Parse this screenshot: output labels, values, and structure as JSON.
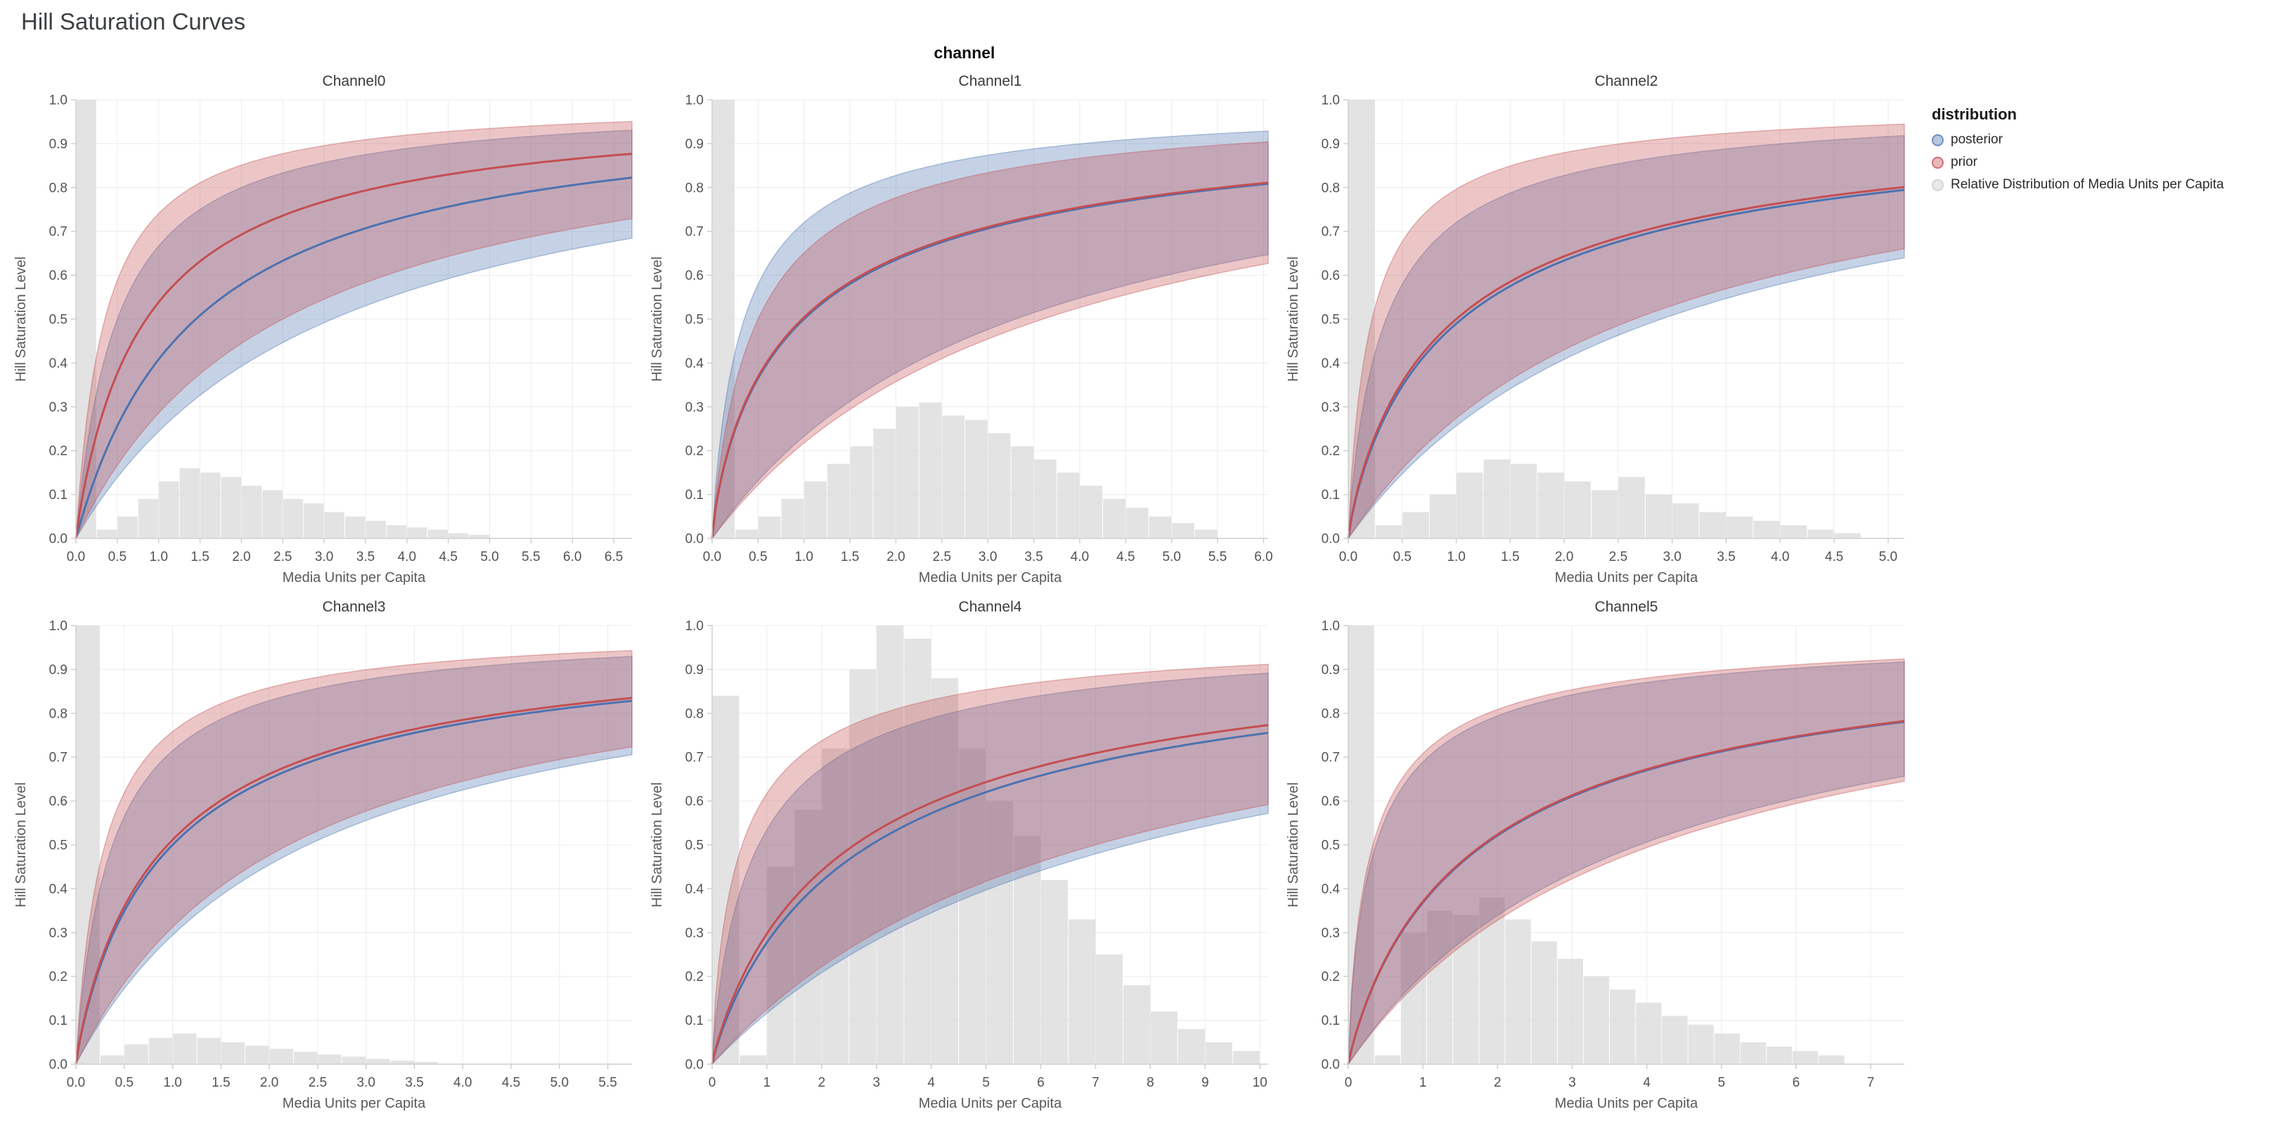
{
  "page_title": "Hill Saturation Curves",
  "facet_header": "channel",
  "axis_labels": {
    "x": "Media Units per Capita",
    "y": "Hill Saturation Level"
  },
  "colors": {
    "posterior": "#4c72b0",
    "prior": "#c44e52",
    "histogram": "#dcdcdc",
    "grid": "#ececec",
    "axis_domain": "#cfcfcf",
    "tick_text": "#535353",
    "axis_title": "#595959"
  },
  "legend": {
    "title": "distribution",
    "items": [
      {
        "label": "posterior",
        "color": "#4c72b0"
      },
      {
        "label": "prior",
        "color": "#c44e52"
      },
      {
        "label": "Relative Distribution of Media Units per Capita",
        "color": "#c9c9c9"
      }
    ]
  },
  "grid_layout": {
    "rows": 2,
    "cols": 3,
    "legend_position": "top-right"
  },
  "chart_data": [
    {
      "type": "line",
      "title": "Channel0",
      "xlabel": "Media Units per Capita",
      "ylabel": "Hill Saturation Level",
      "xlim": [
        0,
        6.72
      ],
      "ylim": [
        0,
        1
      ],
      "x_ticks": [
        0.0,
        0.5,
        1.0,
        1.5,
        2.0,
        2.5,
        3.0,
        3.5,
        4.0,
        4.5,
        5.0,
        5.5,
        6.0,
        6.5
      ],
      "y_ticks": [
        0.0,
        0.1,
        0.2,
        0.3,
        0.4,
        0.5,
        0.6,
        0.7,
        0.8,
        0.9,
        1.0
      ],
      "tick_decimals": 1,
      "series": [
        {
          "name": "posterior",
          "hill": {
            "mean": {
              "K": 1.45,
              "s": 1.0
            },
            "hi": {
              "K": 0.5,
              "s": 1.0
            },
            "lo": {
              "K": 3.1,
              "s": 1.0
            }
          }
        },
        {
          "name": "prior",
          "hill": {
            "mean": {
              "K": 0.85,
              "s": 0.95
            },
            "hi": {
              "K": 0.35,
              "s": 1.0
            },
            "lo": {
              "K": 2.5,
              "s": 1.0
            }
          }
        }
      ],
      "histogram": {
        "name": "Relative Distribution of Media Units per Capita",
        "start": 0,
        "bin_width": 0.25,
        "heights": [
          1.0,
          0.02,
          0.05,
          0.09,
          0.13,
          0.16,
          0.15,
          0.14,
          0.12,
          0.11,
          0.09,
          0.08,
          0.06,
          0.05,
          0.04,
          0.03,
          0.025,
          0.02,
          0.012,
          0.008
        ]
      }
    },
    {
      "type": "line",
      "title": "Channel1",
      "xlabel": "Media Units per Capita",
      "ylabel": "Hill Saturation Level",
      "xlim": [
        0,
        6.05
      ],
      "ylim": [
        0,
        1
      ],
      "x_ticks": [
        0.0,
        0.5,
        1.0,
        1.5,
        2.0,
        2.5,
        3.0,
        3.5,
        4.0,
        4.5,
        5.0,
        5.5,
        6.0
      ],
      "y_ticks": [
        0.0,
        0.1,
        0.2,
        0.3,
        0.4,
        0.5,
        0.6,
        0.7,
        0.8,
        0.9,
        1.0
      ],
      "tick_decimals": 1,
      "series": [
        {
          "name": "posterior",
          "hill": {
            "mean": {
              "K": 1.0,
              "s": 0.8
            },
            "hi": {
              "K": 0.35,
              "s": 0.9
            },
            "lo": {
              "K": 3.3,
              "s": 1.0
            }
          }
        },
        {
          "name": "prior",
          "hill": {
            "mean": {
              "K": 0.98,
              "s": 0.8
            },
            "hi": {
              "K": 0.5,
              "s": 0.9
            },
            "lo": {
              "K": 3.6,
              "s": 1.0
            }
          }
        }
      ],
      "histogram": {
        "name": "Relative Distribution of Media Units per Capita",
        "start": 0,
        "bin_width": 0.25,
        "heights": [
          1.0,
          0.02,
          0.05,
          0.09,
          0.13,
          0.17,
          0.21,
          0.25,
          0.3,
          0.31,
          0.28,
          0.27,
          0.24,
          0.21,
          0.18,
          0.15,
          0.12,
          0.09,
          0.07,
          0.05,
          0.035,
          0.02
        ]
      }
    },
    {
      "type": "line",
      "title": "Channel2",
      "xlabel": "Media Units per Capita",
      "ylabel": "Hill Saturation Level",
      "xlim": [
        0,
        5.15
      ],
      "ylim": [
        0,
        1
      ],
      "x_ticks": [
        0.0,
        0.5,
        1.0,
        1.5,
        2.0,
        2.5,
        3.0,
        3.5,
        4.0,
        4.5,
        5.0
      ],
      "y_ticks": [
        0.0,
        0.1,
        0.2,
        0.3,
        0.4,
        0.5,
        0.6,
        0.7,
        0.8,
        0.9,
        1.0
      ],
      "tick_decimals": 1,
      "series": [
        {
          "name": "posterior",
          "hill": {
            "mean": {
              "K": 1.05,
              "s": 0.85
            },
            "hi": {
              "K": 0.35,
              "s": 0.9
            },
            "lo": {
              "K": 2.9,
              "s": 1.0
            }
          }
        },
        {
          "name": "prior",
          "hill": {
            "mean": {
              "K": 1.0,
              "s": 0.85
            },
            "hi": {
              "K": 0.22,
              "s": 0.9
            },
            "lo": {
              "K": 2.65,
              "s": 1.0
            }
          }
        }
      ],
      "histogram": {
        "name": "Relative Distribution of Media Units per Capita",
        "start": 0,
        "bin_width": 0.25,
        "heights": [
          1.0,
          0.03,
          0.06,
          0.1,
          0.15,
          0.18,
          0.17,
          0.15,
          0.13,
          0.11,
          0.14,
          0.1,
          0.08,
          0.06,
          0.05,
          0.04,
          0.03,
          0.02,
          0.012
        ]
      }
    },
    {
      "type": "line",
      "title": "Channel3",
      "xlabel": "Media Units per Capita",
      "ylabel": "Hill Saturation Level",
      "xlim": [
        0,
        5.75
      ],
      "ylim": [
        0,
        1
      ],
      "x_ticks": [
        0.0,
        0.5,
        1.0,
        1.5,
        2.0,
        2.5,
        3.0,
        3.5,
        4.0,
        4.5,
        5.0,
        5.5
      ],
      "y_ticks": [
        0.0,
        0.1,
        0.2,
        0.3,
        0.4,
        0.5,
        0.6,
        0.7,
        0.8,
        0.9,
        1.0
      ],
      "tick_decimals": 1,
      "series": [
        {
          "name": "posterior",
          "hill": {
            "mean": {
              "K": 1.0,
              "s": 0.9
            },
            "hi": {
              "K": 0.38,
              "s": 0.95
            },
            "lo": {
              "K": 2.4,
              "s": 1.0
            }
          }
        },
        {
          "name": "prior",
          "hill": {
            "mean": {
              "K": 0.95,
              "s": 0.9
            },
            "hi": {
              "K": 0.3,
              "s": 0.95
            },
            "lo": {
              "K": 2.2,
              "s": 1.0
            }
          }
        }
      ],
      "histogram": {
        "name": "Relative Distribution of Media Units per Capita",
        "start": 0,
        "bin_width": 0.25,
        "heights": [
          1.0,
          0.02,
          0.045,
          0.06,
          0.07,
          0.06,
          0.05,
          0.042,
          0.035,
          0.028,
          0.022,
          0.017,
          0.012,
          0.008,
          0.005
        ]
      }
    },
    {
      "type": "line",
      "title": "Channel4",
      "xlabel": "Media Units per Capita",
      "ylabel": "Hill Saturation Level",
      "xlim": [
        0,
        10.15
      ],
      "ylim": [
        0,
        1
      ],
      "x_ticks": [
        0,
        1,
        2,
        3,
        4,
        5,
        6,
        7,
        8,
        9,
        10
      ],
      "y_ticks": [
        0.0,
        0.1,
        0.2,
        0.3,
        0.4,
        0.5,
        0.6,
        0.7,
        0.8,
        0.9,
        1.0
      ],
      "tick_decimals": 0,
      "series": [
        {
          "name": "posterior",
          "hill": {
            "mean": {
              "K": 2.9,
              "s": 0.9
            },
            "hi": {
              "K": 0.85,
              "s": 0.85
            },
            "lo": {
              "K": 7.6,
              "s": 1.0
            }
          }
        },
        {
          "name": "prior",
          "hill": {
            "mean": {
              "K": 2.6,
              "s": 0.9
            },
            "hi": {
              "K": 0.55,
              "s": 0.8
            },
            "lo": {
              "K": 7.0,
              "s": 1.0
            }
          }
        }
      ],
      "histogram": {
        "name": "Relative Distribution of Media Units per Capita",
        "start": 0,
        "bin_width": 0.5,
        "heights": [
          0.84,
          0.02,
          0.45,
          0.58,
          0.72,
          0.9,
          1.0,
          0.97,
          0.88,
          0.72,
          0.6,
          0.52,
          0.42,
          0.33,
          0.25,
          0.18,
          0.12,
          0.08,
          0.05,
          0.03
        ]
      }
    },
    {
      "type": "line",
      "title": "Channel5",
      "xlabel": "Media Units per Capita",
      "ylabel": "Hill Saturation Level",
      "xlim": [
        0,
        7.45
      ],
      "ylim": [
        0,
        1
      ],
      "x_ticks": [
        0,
        1,
        2,
        3,
        4,
        5,
        6,
        7
      ],
      "y_ticks": [
        0.0,
        0.1,
        0.2,
        0.3,
        0.4,
        0.5,
        0.6,
        0.7,
        0.8,
        0.9,
        1.0
      ],
      "tick_decimals": 0,
      "series": [
        {
          "name": "posterior",
          "hill": {
            "mean": {
              "K": 1.82,
              "s": 0.9
            },
            "hi": {
              "K": 0.37,
              "s": 0.8
            },
            "lo": {
              "K": 3.9,
              "s": 1.0
            }
          }
        },
        {
          "name": "prior",
          "hill": {
            "mean": {
              "K": 1.8,
              "s": 0.9
            },
            "hi": {
              "K": 0.33,
              "s": 0.8
            },
            "lo": {
              "K": 4.1,
              "s": 1.0
            }
          }
        }
      ],
      "histogram": {
        "name": "Relative Distribution of Media Units per Capita",
        "start": 0,
        "bin_width": 0.35,
        "heights": [
          1.0,
          0.02,
          0.3,
          0.35,
          0.34,
          0.38,
          0.33,
          0.28,
          0.24,
          0.2,
          0.17,
          0.14,
          0.11,
          0.09,
          0.07,
          0.05,
          0.04,
          0.03,
          0.02
        ]
      }
    }
  ]
}
